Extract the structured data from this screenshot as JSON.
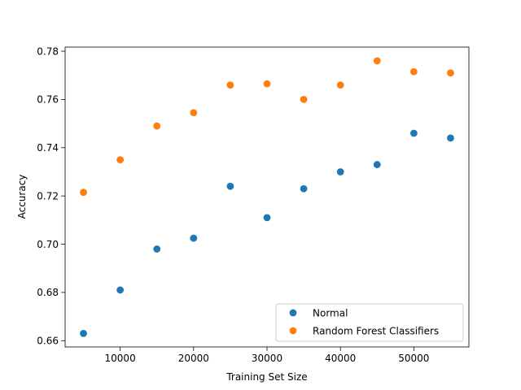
{
  "chart_data": {
    "type": "scatter",
    "title": "",
    "xlabel": "Training Set Size",
    "ylabel": "Accuracy",
    "xlim": [
      2500,
      57500
    ],
    "ylim": [
      0.6574,
      0.7817
    ],
    "xticks": [
      10000,
      20000,
      30000,
      40000,
      50000
    ],
    "xtick_labels": [
      "10000",
      "20000",
      "30000",
      "40000",
      "50000"
    ],
    "yticks": [
      0.66,
      0.68,
      0.7,
      0.72,
      0.74,
      0.76,
      0.78
    ],
    "ytick_labels": [
      "0.66",
      "0.68",
      "0.70",
      "0.72",
      "0.74",
      "0.76",
      "0.78"
    ],
    "grid": false,
    "legend_position": "lower-right",
    "x": [
      5000,
      10000,
      15000,
      20000,
      25000,
      30000,
      35000,
      40000,
      45000,
      50000,
      55000
    ],
    "series": [
      {
        "name": "Normal",
        "color": "#1f77b4",
        "values": [
          0.663,
          0.681,
          0.698,
          0.7025,
          0.724,
          0.711,
          0.723,
          0.73,
          0.733,
          0.746,
          0.744
        ]
      },
      {
        "name": "Random Forest Classifiers",
        "color": "#ff7f0e",
        "values": [
          0.7215,
          0.735,
          0.749,
          0.7545,
          0.766,
          0.7665,
          0.76,
          0.766,
          0.776,
          0.7715,
          0.771
        ]
      }
    ]
  }
}
